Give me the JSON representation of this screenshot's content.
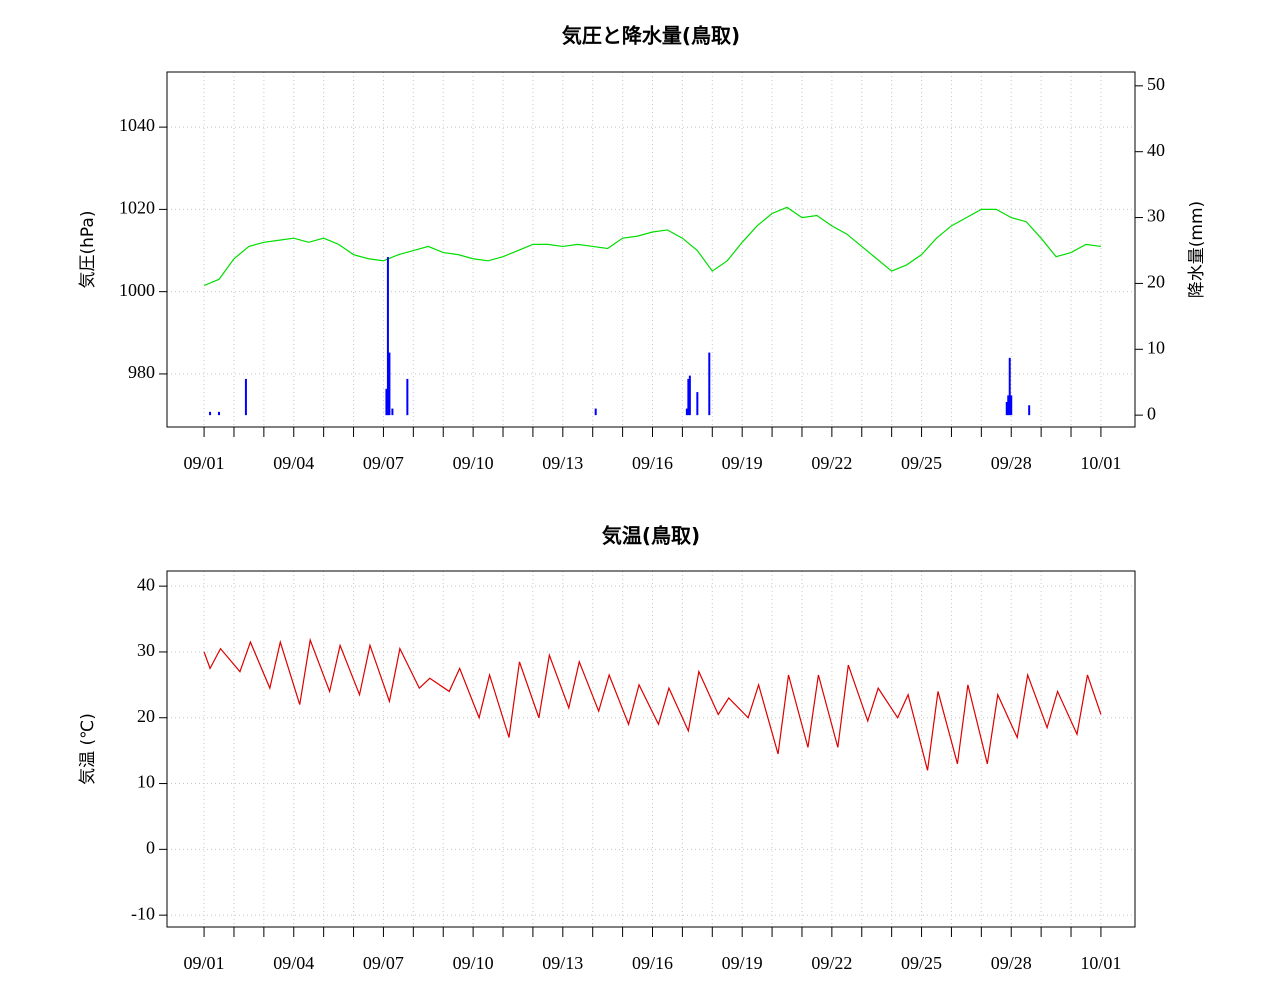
{
  "chart_data": [
    {
      "type": "line",
      "title": "気圧と降水量(鳥取)",
      "y_label": "気圧(hPa)",
      "y2_label": "降水量(mm)",
      "xlim": [
        -1.24,
        31.14
      ],
      "xticks": [
        {
          "value": 0,
          "label": "09/01"
        },
        {
          "value": 3,
          "label": "09/04"
        },
        {
          "value": 6,
          "label": "09/07"
        },
        {
          "value": 9,
          "label": "09/10"
        },
        {
          "value": 12,
          "label": "09/13"
        },
        {
          "value": 15,
          "label": "09/16"
        },
        {
          "value": 18,
          "label": "09/19"
        },
        {
          "value": 21,
          "label": "09/22"
        },
        {
          "value": 24,
          "label": "09/25"
        },
        {
          "value": 27,
          "label": "09/28"
        },
        {
          "value": 30,
          "label": "10/01"
        }
      ],
      "x_minor_ticks": [
        0,
        1,
        2,
        3,
        4,
        5,
        6,
        7,
        8,
        9,
        10,
        11,
        12,
        13,
        14,
        15,
        16,
        17,
        18,
        19,
        20,
        21,
        22,
        23,
        24,
        25,
        26,
        27,
        28,
        29,
        30
      ],
      "ylim": [
        967.1,
        1053.4
      ],
      "yticks": [
        980,
        1000,
        1020,
        1040
      ],
      "y2lim": [
        -1.8,
        52.1
      ],
      "y2ticks": [
        0,
        10,
        20,
        30,
        40,
        50
      ],
      "grid": true,
      "series": [
        {
          "type": "line",
          "color": "#00dd00",
          "x": [
            0,
            0.5,
            1,
            1.5,
            2,
            2.5,
            3,
            3.5,
            4,
            4.5,
            5,
            5.5,
            6,
            6.5,
            7,
            7.5,
            8,
            8.5,
            9,
            9.5,
            10,
            10.5,
            11,
            11.5,
            12,
            12.5,
            13,
            13.5,
            14,
            14.5,
            15,
            15.5,
            16,
            16.5,
            17,
            17.5,
            18,
            18.5,
            19,
            19.5,
            20,
            20.5,
            21,
            21.5,
            22,
            22.5,
            23,
            23.5,
            24,
            24.5,
            25,
            25.5,
            26,
            26.5,
            27,
            27.5,
            28,
            28.5,
            29,
            29.5,
            30
          ],
          "values": [
            1001.5,
            1003,
            1008,
            1011,
            1012,
            1012.5,
            1013,
            1012,
            1013,
            1011.5,
            1009,
            1008,
            1007.5,
            1009,
            1010,
            1011,
            1009.5,
            1009,
            1008,
            1007.5,
            1008.5,
            1010,
            1011.5,
            1011.5,
            1011,
            1011.5,
            1011,
            1010.5,
            1013,
            1013.5,
            1014.5,
            1015,
            1013,
            1010,
            1005,
            1007.5,
            1012,
            1016,
            1019,
            1020.5,
            1018,
            1018.5,
            1016,
            1014,
            1011,
            1008,
            1005,
            1006.5,
            1009,
            1013,
            1016,
            1018,
            1020,
            1020,
            1018,
            1017,
            1013,
            1008.5,
            1009.5,
            1011.5,
            1011
          ]
        },
        {
          "type": "bar",
          "color": "#0000ff",
          "axis": "y2",
          "x": [
            0.2,
            0.5,
            1.4,
            6.1,
            6.15,
            6.2,
            6.3,
            6.8,
            13.1,
            16.15,
            16.2,
            16.25,
            16.5,
            16.9,
            26.85,
            26.9,
            26.95,
            27.0,
            27.6
          ],
          "values": [
            0.5,
            0.5,
            5.5,
            4,
            24,
            9.5,
            1,
            5.5,
            1,
            1,
            5.5,
            6,
            3.5,
            9.5,
            2,
            3,
            8.7,
            3,
            1.5
          ]
        }
      ]
    },
    {
      "type": "line",
      "title": "気温(鳥取)",
      "y_label": "気温 (℃)",
      "xlim": [
        -1.24,
        31.14
      ],
      "xticks": [
        {
          "value": 0,
          "label": "09/01"
        },
        {
          "value": 3,
          "label": "09/04"
        },
        {
          "value": 6,
          "label": "09/07"
        },
        {
          "value": 9,
          "label": "09/10"
        },
        {
          "value": 12,
          "label": "09/13"
        },
        {
          "value": 15,
          "label": "09/16"
        },
        {
          "value": 18,
          "label": "09/19"
        },
        {
          "value": 21,
          "label": "09/22"
        },
        {
          "value": 24,
          "label": "09/25"
        },
        {
          "value": 27,
          "label": "09/28"
        },
        {
          "value": 30,
          "label": "10/01"
        }
      ],
      "x_minor_ticks": [
        0,
        1,
        2,
        3,
        4,
        5,
        6,
        7,
        8,
        9,
        10,
        11,
        12,
        13,
        14,
        15,
        16,
        17,
        18,
        19,
        20,
        21,
        22,
        23,
        24,
        25,
        26,
        27,
        28,
        29,
        30
      ],
      "ylim": [
        -11.8,
        42.3
      ],
      "yticks": [
        -10,
        0,
        10,
        20,
        30,
        40
      ],
      "grid": true,
      "series": [
        {
          "type": "line",
          "color": "#dd0000",
          "x": [
            0,
            0.2,
            0.55,
            1.2,
            1.55,
            2.2,
            2.55,
            3.2,
            3.55,
            4.2,
            4.55,
            5.2,
            5.55,
            6.2,
            6.55,
            7.2,
            7.55,
            8.2,
            8.55,
            9.2,
            9.55,
            10.2,
            10.55,
            11.2,
            11.55,
            12.2,
            12.55,
            13.2,
            13.55,
            14.2,
            14.55,
            15.2,
            15.55,
            16.2,
            16.55,
            17.2,
            17.55,
            18.2,
            18.55,
            19.2,
            19.55,
            20.2,
            20.55,
            21.2,
            21.55,
            22.2,
            22.55,
            23.2,
            23.55,
            24.2,
            24.55,
            25.2,
            25.55,
            26.2,
            26.55,
            27.2,
            27.55,
            28.2,
            28.55,
            29.2,
            29.55,
            30
          ],
          "values": [
            30,
            27.5,
            30.5,
            27,
            31.5,
            24.5,
            31.5,
            22,
            31.8,
            24,
            31,
            23.5,
            31,
            22.5,
            30.5,
            24.5,
            26,
            24,
            27.5,
            20,
            26.5,
            17,
            28.5,
            20,
            29.5,
            21.5,
            28.5,
            21,
            26.5,
            19,
            25,
            19,
            24.5,
            18,
            27,
            20.5,
            23,
            20,
            25,
            14.5,
            26.5,
            15.5,
            26.5,
            15.5,
            28,
            19.5,
            24.5,
            20,
            23.5,
            12,
            24,
            13,
            25,
            13,
            23.5,
            17,
            26.5,
            18.5,
            24,
            17.5,
            26.5,
            20.5
          ]
        }
      ]
    }
  ]
}
